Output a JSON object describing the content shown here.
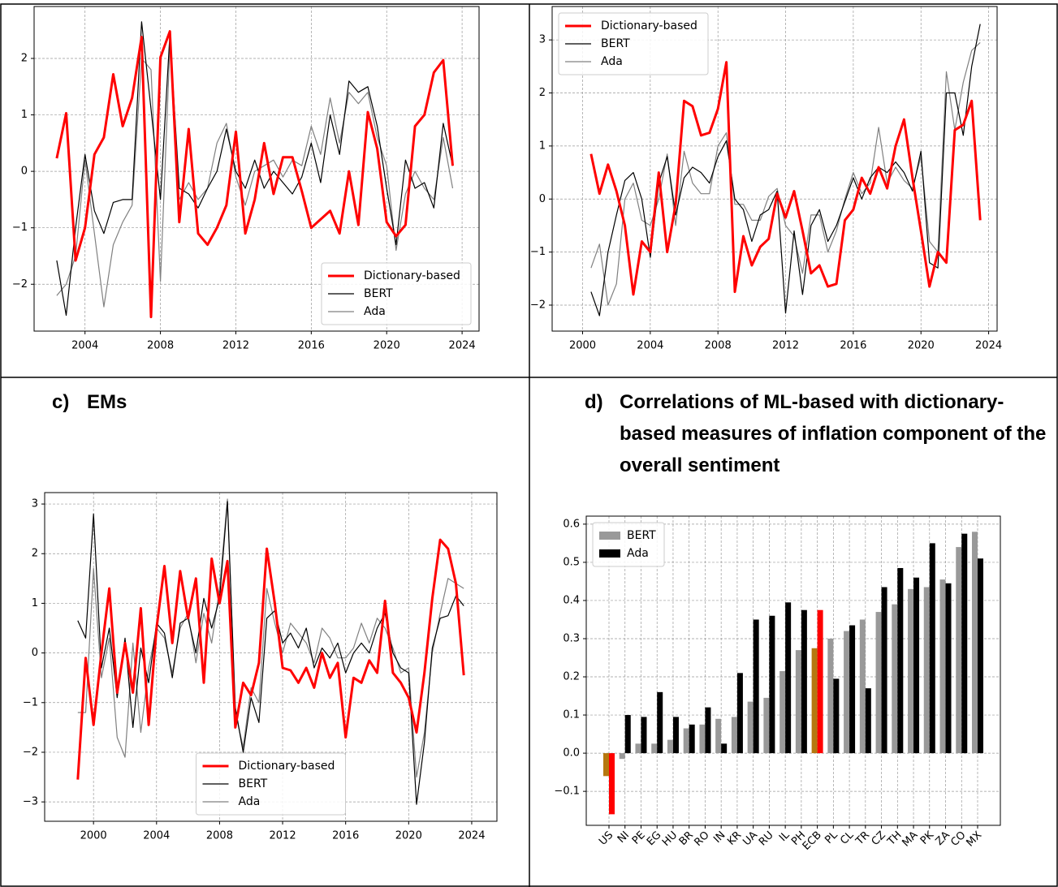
{
  "chart_data": [
    {
      "type": "line",
      "x": [
        2002.5,
        2003,
        2003.5,
        2004,
        2004.5,
        2005,
        2005.5,
        2006,
        2006.5,
        2007,
        2007.5,
        2008,
        2008.5,
        2009,
        2009.5,
        2010,
        2010.5,
        2011,
        2011.5,
        2012,
        2012.5,
        2013,
        2013.5,
        2014,
        2014.5,
        2015,
        2015.5,
        2016,
        2016.5,
        2017,
        2017.5,
        2018,
        2018.5,
        2019,
        2019.5,
        2020,
        2020.5,
        2021,
        2021.5,
        2022,
        2022.5,
        2023,
        2023.5
      ],
      "series": [
        {
          "name": "Dictionary-based",
          "color": "#ff0000",
          "values": [
            0.23,
            1.03,
            -1.58,
            -1.0,
            0.3,
            0.6,
            1.72,
            0.8,
            1.3,
            2.38,
            -2.58,
            2.02,
            2.48,
            -0.9,
            0.75,
            -1.1,
            -1.3,
            -1.0,
            -0.6,
            0.7,
            -1.1,
            -0.5,
            0.5,
            -0.4,
            0.25,
            0.25,
            -0.35,
            -1.0,
            -0.85,
            -0.7,
            -1.1,
            0.0,
            -0.95,
            1.05,
            0.4,
            -0.9,
            -1.15,
            -0.95,
            0.8,
            1.0,
            1.75,
            1.97,
            0.1
          ]
        },
        {
          "name": "BERT",
          "color": "#000000",
          "values": [
            -1.58,
            -2.55,
            -1.0,
            0.3,
            -0.7,
            -1.1,
            -0.55,
            -0.5,
            -0.5,
            2.65,
            1.1,
            -0.5,
            2.42,
            -0.3,
            -0.4,
            -0.65,
            -0.3,
            0.0,
            0.75,
            0.0,
            -0.3,
            0.2,
            -0.3,
            0.0,
            -0.2,
            -0.4,
            -0.1,
            0.5,
            -0.2,
            1.0,
            0.3,
            1.6,
            1.4,
            1.5,
            0.8,
            -0.3,
            -1.3,
            0.2,
            -0.3,
            -0.2,
            -0.65,
            0.85,
            0.1
          ]
        },
        {
          "name": "Ada",
          "color": "#808080",
          "values": [
            -2.2,
            -2.0,
            -1.5,
            0.2,
            -1.1,
            -2.4,
            -1.3,
            -0.9,
            -0.6,
            2.0,
            1.8,
            -1.95,
            2.2,
            -0.5,
            -0.2,
            -0.5,
            -0.3,
            0.5,
            0.85,
            -0.1,
            -0.6,
            0.0,
            0.1,
            0.2,
            -0.1,
            0.2,
            0.1,
            0.8,
            0.3,
            1.3,
            0.5,
            1.4,
            1.2,
            1.4,
            0.6,
            0.1,
            -1.4,
            -0.4,
            0.0,
            -0.3,
            -0.5,
            0.6,
            -0.3
          ]
        }
      ],
      "xlim": [
        2001.3,
        2024.9
      ],
      "xticks": [
        2004,
        2008,
        2012,
        2016,
        2020,
        2024
      ],
      "ylim": [
        -2.83,
        2.92
      ],
      "yticks": [
        {
          "value": -2,
          "label": "−2"
        },
        {
          "value": -1,
          "label": "−1"
        },
        0,
        1,
        2
      ],
      "grid": true,
      "legend": "lower right"
    },
    {
      "type": "line",
      "x": [
        2000.5,
        2001,
        2001.5,
        2002,
        2002.5,
        2003,
        2003.5,
        2004,
        2004.5,
        2005,
        2005.5,
        2006,
        2006.5,
        2007,
        2007.5,
        2008,
        2008.5,
        2009,
        2009.5,
        2010,
        2010.5,
        2011,
        2011.5,
        2012,
        2012.5,
        2013,
        2013.5,
        2014,
        2014.5,
        2015,
        2015.5,
        2016,
        2016.5,
        2017,
        2017.5,
        2018,
        2018.5,
        2019,
        2019.5,
        2020,
        2020.5,
        2021,
        2021.5,
        2022,
        2022.5,
        2023,
        2023.5
      ],
      "series": [
        {
          "name": "Dictionary-based",
          "color": "#ff0000",
          "values": [
            0.85,
            0.1,
            0.65,
            0.15,
            -0.5,
            -1.8,
            -0.8,
            -1.0,
            0.5,
            -1.0,
            -0.1,
            1.85,
            1.75,
            1.2,
            1.25,
            1.7,
            2.58,
            -1.75,
            -0.7,
            -1.25,
            -0.9,
            -0.75,
            0.1,
            -0.35,
            0.15,
            -0.6,
            -1.4,
            -1.25,
            -1.65,
            -1.6,
            -0.4,
            -0.2,
            0.4,
            0.1,
            0.6,
            0.2,
            1.0,
            1.5,
            0.4,
            -0.6,
            -1.65,
            -1.0,
            -1.2,
            1.3,
            1.4,
            1.85,
            -0.4
          ]
        },
        {
          "name": "BERT",
          "color": "#000000",
          "values": [
            -1.75,
            -2.2,
            -1.0,
            -0.3,
            0.35,
            0.5,
            0.0,
            -1.1,
            0.3,
            0.8,
            -0.3,
            0.4,
            0.6,
            0.5,
            0.3,
            0.8,
            1.1,
            0.0,
            -0.2,
            -0.8,
            -0.3,
            -0.2,
            0.15,
            -2.15,
            -0.6,
            -1.8,
            -0.5,
            -0.2,
            -0.8,
            -0.5,
            -0.05,
            0.4,
            0.0,
            0.4,
            0.6,
            0.5,
            0.7,
            0.5,
            0.15,
            0.9,
            -1.2,
            -1.3,
            2.0,
            2.0,
            1.2,
            2.5,
            3.3
          ]
        },
        {
          "name": "Ada",
          "color": "#808080",
          "values": [
            -1.3,
            -0.85,
            -2.0,
            -1.6,
            0.0,
            0.3,
            -0.4,
            -0.5,
            0.0,
            0.85,
            -0.5,
            0.9,
            0.3,
            0.1,
            0.1,
            1.0,
            1.25,
            -0.1,
            -0.1,
            -0.4,
            -0.4,
            0.05,
            0.2,
            -0.5,
            -0.7,
            -1.4,
            -0.3,
            -0.3,
            -1.0,
            -0.6,
            0.0,
            0.5,
            0.1,
            0.3,
            1.35,
            0.3,
            0.6,
            0.35,
            0.2,
            0.8,
            -0.8,
            -1.0,
            2.4,
            1.3,
            2.2,
            2.8,
            2.95
          ]
        }
      ],
      "xlim": [
        1998.2,
        2024.5
      ],
      "xticks": [
        2000,
        2004,
        2008,
        2012,
        2016,
        2020,
        2024
      ],
      "ylim": [
        -2.49,
        3.63
      ],
      "yticks": [
        {
          "value": -2,
          "label": "−2"
        },
        {
          "value": -1,
          "label": "−1"
        },
        0,
        1,
        2,
        3
      ],
      "grid": true,
      "legend": "upper left"
    },
    {
      "type": "line",
      "label": "c)",
      "title": "EMs",
      "x": [
        1999,
        1999.5,
        2000,
        2000.5,
        2001,
        2001.5,
        2002,
        2002.5,
        2003,
        2003.5,
        2004,
        2004.5,
        2005,
        2005.5,
        2006,
        2006.5,
        2007,
        2007.5,
        2008,
        2008.5,
        2009,
        2009.5,
        2010,
        2010.5,
        2011,
        2011.5,
        2012,
        2012.5,
        2013,
        2013.5,
        2014,
        2014.5,
        2015,
        2015.5,
        2016,
        2016.5,
        2017,
        2017.5,
        2018,
        2018.5,
        2019,
        2019.5,
        2020,
        2020.5,
        2021,
        2021.5,
        2022,
        2022.5,
        2023,
        2023.5
      ],
      "series": [
        {
          "name": "Dictionary-based",
          "color": "#ff0000",
          "values": [
            -2.55,
            -0.1,
            -1.45,
            0.0,
            1.3,
            -0.8,
            0.2,
            -0.8,
            0.9,
            -1.45,
            0.5,
            1.75,
            0.2,
            1.65,
            0.7,
            1.5,
            -0.6,
            1.9,
            1.0,
            1.85,
            -1.5,
            -0.6,
            -0.85,
            -0.2,
            2.1,
            1.0,
            -0.3,
            -0.35,
            -0.6,
            -0.3,
            -0.7,
            0.0,
            -0.5,
            -0.2,
            -1.7,
            -0.5,
            -0.6,
            -0.15,
            -0.4,
            1.05,
            -0.4,
            -0.6,
            -0.9,
            -1.6,
            -0.4,
            1.1,
            2.28,
            2.1,
            1.4,
            -0.45
          ]
        },
        {
          "name": "BERT",
          "color": "#000000",
          "values": [
            0.65,
            0.3,
            2.8,
            -0.3,
            0.5,
            -0.9,
            0.3,
            -1.5,
            0.1,
            -0.6,
            0.6,
            0.4,
            -0.5,
            0.6,
            0.7,
            0.0,
            1.1,
            0.5,
            1.1,
            3.05,
            -1.1,
            -2.0,
            -0.9,
            -1.4,
            0.7,
            0.85,
            0.2,
            0.4,
            0.1,
            0.5,
            -0.3,
            0.1,
            -0.1,
            0.2,
            -0.4,
            0.0,
            0.2,
            0.0,
            0.5,
            0.8,
            0.0,
            -0.3,
            -0.4,
            -3.05,
            -1.8,
            0.1,
            0.7,
            0.75,
            1.15,
            0.95
          ]
        },
        {
          "name": "Ada",
          "color": "#808080",
          "values": [
            -1.2,
            -1.2,
            1.7,
            -0.5,
            0.3,
            -1.7,
            -2.1,
            0.2,
            -1.6,
            -0.3,
            0.5,
            0.3,
            -0.4,
            0.5,
            0.8,
            -0.2,
            0.8,
            0.2,
            1.3,
            3.1,
            -1.2,
            -1.9,
            -0.7,
            -1.0,
            1.3,
            0.6,
            0.0,
            0.6,
            0.4,
            0.2,
            -0.2,
            0.5,
            0.3,
            -0.1,
            -0.1,
            0.1,
            0.6,
            0.2,
            0.7,
            0.5,
            0.1,
            -0.4,
            -0.3,
            -2.5,
            -1.6,
            0.0,
            0.8,
            1.5,
            1.4,
            1.3
          ]
        }
      ],
      "xlim": [
        1996.9,
        2025.6
      ],
      "xticks": [
        2000,
        2004,
        2008,
        2012,
        2016,
        2020,
        2024
      ],
      "ylim": [
        -3.39,
        3.23
      ],
      "yticks": [
        {
          "value": -3,
          "label": "−3"
        },
        {
          "value": -2,
          "label": "−2"
        },
        {
          "value": -1,
          "label": "−1"
        },
        0,
        1,
        2,
        3
      ],
      "grid": true,
      "legend": "lower center"
    },
    {
      "type": "bar",
      "label": "d)",
      "title": "Correlations of ML-based with dictionary-based measures of inflation component of the overall sentiment",
      "categories": [
        "US",
        "NI",
        "PE",
        "EG",
        "HU",
        "BR",
        "RO",
        "IN",
        "KR",
        "UA",
        "RU",
        "IL",
        "PH",
        "ECB",
        "PL",
        "CL",
        "TR",
        "CZ",
        "TH",
        "MA",
        "PK",
        "ZA",
        "CO",
        "MX"
      ],
      "series": [
        {
          "name": "BERT",
          "color": "#999999",
          "highlight_color": "#b5780f",
          "values": [
            -0.06,
            -0.015,
            0.025,
            0.025,
            0.035,
            0.065,
            0.075,
            0.09,
            0.095,
            0.135,
            0.145,
            0.215,
            0.27,
            0.275,
            0.3,
            0.32,
            0.35,
            0.37,
            0.39,
            0.43,
            0.435,
            0.455,
            0.54,
            0.58
          ]
        },
        {
          "name": "Ada",
          "color": "#000000",
          "highlight_color": "#ff0000",
          "values": [
            -0.16,
            0.1,
            0.095,
            0.16,
            0.095,
            0.075,
            0.12,
            0.025,
            0.21,
            0.35,
            0.36,
            0.395,
            0.375,
            0.375,
            0.195,
            0.335,
            0.17,
            0.435,
            0.485,
            0.46,
            0.55,
            0.445,
            0.575,
            0.51
          ]
        }
      ],
      "highlight_categories": [
        "US",
        "ECB"
      ],
      "ylim": [
        -0.189,
        0.621
      ],
      "yticks": [
        {
          "value": -0.1,
          "label": "−0.1"
        },
        {
          "value": 0,
          "label": "0.0"
        },
        0.1,
        0.2,
        0.3,
        0.4,
        0.5,
        0.6
      ],
      "grid": true,
      "legend": "upper left"
    }
  ]
}
